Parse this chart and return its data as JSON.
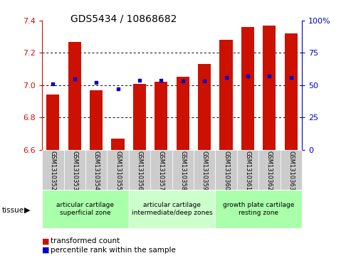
{
  "title": "GDS5434 / 10868682",
  "samples": [
    "GSM1310352",
    "GSM1310353",
    "GSM1310354",
    "GSM1310355",
    "GSM1310356",
    "GSM1310357",
    "GSM1310358",
    "GSM1310359",
    "GSM1310360",
    "GSM1310361",
    "GSM1310362",
    "GSM1310363"
  ],
  "red_values": [
    6.94,
    7.27,
    6.97,
    6.67,
    7.01,
    7.02,
    7.05,
    7.13,
    7.28,
    7.36,
    7.37,
    7.32
  ],
  "blue_values": [
    51,
    55,
    52,
    47,
    54,
    54,
    53,
    53,
    56,
    57,
    57,
    56
  ],
  "ymin": 6.6,
  "ymax": 7.4,
  "y2min": 0,
  "y2max": 100,
  "yticks": [
    6.6,
    6.8,
    7.0,
    7.2,
    7.4
  ],
  "y2ticks": [
    0,
    25,
    50,
    75,
    100
  ],
  "y2ticklabels": [
    "0",
    "25",
    "50",
    "75",
    "100%"
  ],
  "groups": [
    {
      "label": "articular cartilage\nsuperficial zone",
      "start": 0,
      "end": 3,
      "color": "#aaffaa"
    },
    {
      "label": "articular cartilage\nintermediate/deep zones",
      "start": 4,
      "end": 7,
      "color": "#ccffcc"
    },
    {
      "label": "growth plate cartilage\nresting zone",
      "start": 8,
      "end": 11,
      "color": "#aaffaa"
    }
  ],
  "red_color": "#cc1100",
  "blue_color": "#0000cc",
  "bar_base": 6.6,
  "bar_width": 0.6,
  "tick_bg_color": "#cccccc",
  "legend_red_label": "transformed count",
  "legend_blue_label": "percentile rank within the sample"
}
